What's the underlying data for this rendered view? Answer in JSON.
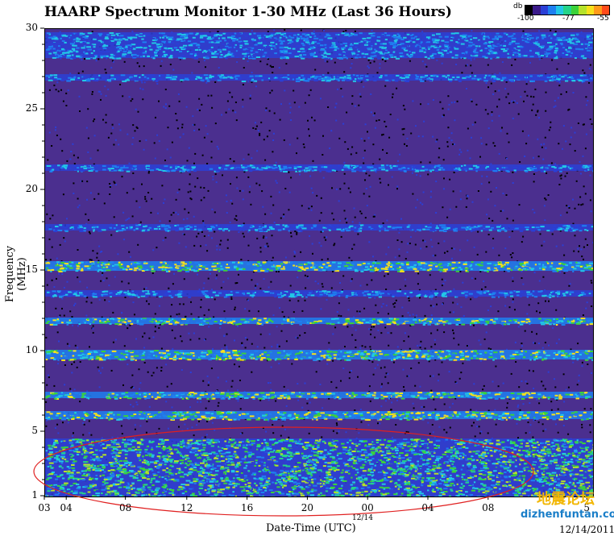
{
  "chart_data": {
    "type": "heatmap",
    "title": "HAARP Spectrum Monitor 1-30 MHz (Last 36 Hours)",
    "xlabel": "Date-Time (UTC)",
    "ylabel": "Frequency (MHz)",
    "ylim": [
      1,
      30
    ],
    "y_ticks": [
      "1",
      "5",
      "10",
      "15",
      "20",
      "25",
      "30"
    ],
    "x_ticks": [
      "03",
      "04",
      "08",
      "12",
      "16",
      "20",
      "00",
      "04",
      "08",
      "5"
    ],
    "x_date_label": "12/14",
    "date_stamp": "12/14/2011",
    "colorbar": {
      "unit": "db",
      "ticks": [
        "-100",
        "-77",
        "-55"
      ],
      "colors": [
        "#000000",
        "#3a1a8a",
        "#2b3fd6",
        "#1e7ff0",
        "#22c7e6",
        "#24d48a",
        "#3bd23a",
        "#b5e22b",
        "#f7e11b",
        "#ff9a1a",
        "#ff4b1a"
      ]
    },
    "bands": [
      {
        "freq_lo": 28.2,
        "freq_hi": 29.8,
        "level": "moderate"
      },
      {
        "freq_lo": 26.8,
        "freq_hi": 27.2,
        "level": "moderate"
      },
      {
        "freq_lo": 21.2,
        "freq_hi": 21.6,
        "level": "moderate"
      },
      {
        "freq_lo": 17.5,
        "freq_hi": 17.9,
        "level": "moderate"
      },
      {
        "freq_lo": 15.0,
        "freq_hi": 15.6,
        "level": "strong"
      },
      {
        "freq_lo": 13.4,
        "freq_hi": 13.8,
        "level": "moderate"
      },
      {
        "freq_lo": 11.7,
        "freq_hi": 12.1,
        "level": "strong"
      },
      {
        "freq_lo": 9.5,
        "freq_hi": 10.1,
        "level": "strong"
      },
      {
        "freq_lo": 7.1,
        "freq_hi": 7.5,
        "level": "strong"
      },
      {
        "freq_lo": 5.8,
        "freq_hi": 6.3,
        "level": "strong"
      },
      {
        "freq_lo": 1.0,
        "freq_hi": 4.6,
        "level": "very-strong"
      }
    ]
  },
  "watermark": {
    "cn": "地震论坛",
    "en": "dizhenfuntan.com"
  }
}
